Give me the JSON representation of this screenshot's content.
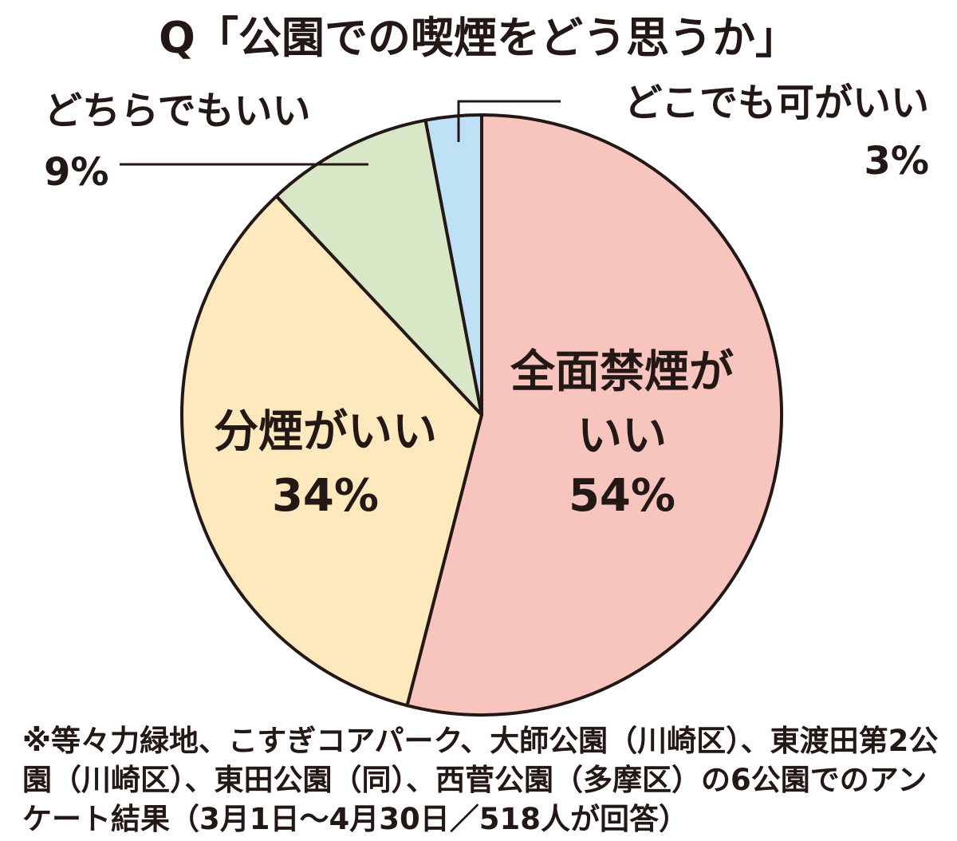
{
  "chart_data": {
    "type": "pie",
    "title": "Q「公園での喫煙をどう思うか」",
    "start_angle_deg": 0,
    "direction": "clockwise",
    "slices": [
      {
        "label_lines": [
          "全面禁煙が",
          "いい"
        ],
        "value": 54,
        "value_label": "54%",
        "color": "#f7c5bd",
        "label_placement": "inside"
      },
      {
        "label_lines": [
          "分煙がいい"
        ],
        "value": 34,
        "value_label": "34%",
        "color": "#fde9bd",
        "label_placement": "inside"
      },
      {
        "label_lines": [
          "どちらでもいい"
        ],
        "value": 9,
        "value_label": "9%",
        "color": "#d8e8c6",
        "label_placement": "outside-left"
      },
      {
        "label_lines": [
          "どこでも可がいい"
        ],
        "value": 3,
        "value_label": "3%",
        "color": "#bfe1f6",
        "label_placement": "outside-right"
      }
    ],
    "outline_color": "#231815"
  },
  "footnote": "※等々力緑地、こすぎコアパーク、大師公園（川崎区）、東渡田第2公園（川崎区）、東田公園（同）、西菅公園（多摩区）の6公園でのアンケート結果（3月1日〜4月30日／518人が回答）"
}
